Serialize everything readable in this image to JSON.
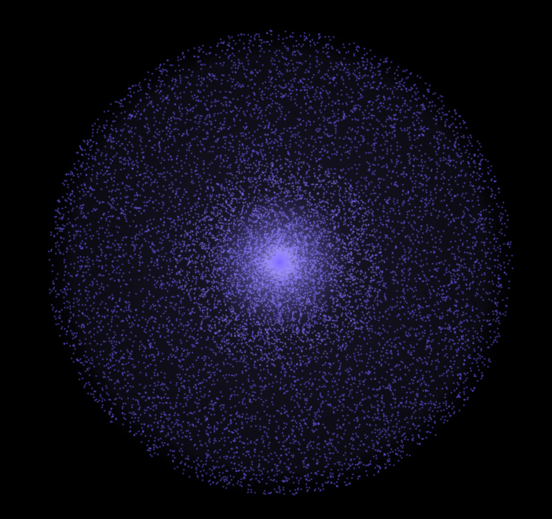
{
  "scene": {
    "background_color": "#000000",
    "particle_color": "#6b5cff",
    "core_glow_color": "#b8b0ff",
    "halo_color": "#5a50c8",
    "shape": "disc",
    "distribution": "dense-center-sparse-edge"
  }
}
